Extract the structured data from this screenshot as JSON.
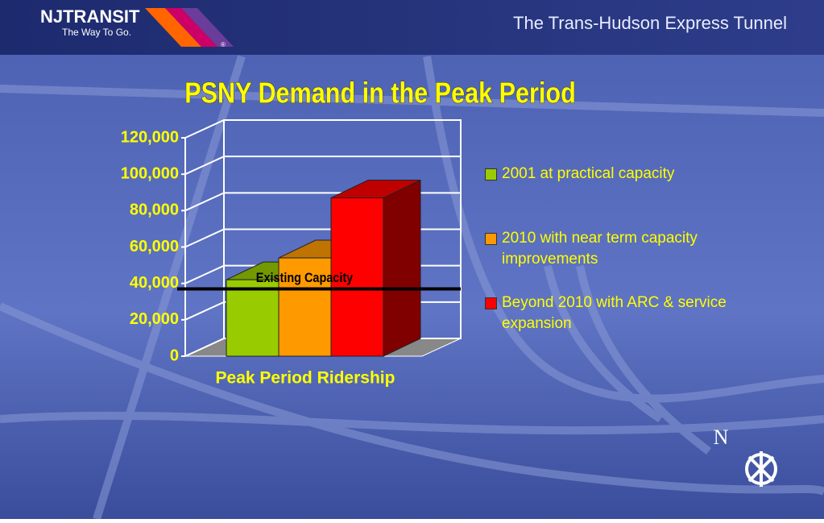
{
  "header": {
    "logo": "NJTRANSIT",
    "tagline": "The Way To Go.",
    "registered": "®",
    "banner": "The Trans-Hudson Express Tunnel"
  },
  "compass": "N",
  "chart_data": {
    "type": "bar3d",
    "title": "PSNY Demand in the Peak Period",
    "categories": [
      "Peak Period Ridership"
    ],
    "series": [
      {
        "name": "2001 at practical capacity",
        "color": "#99cc00",
        "values": [
          42000
        ]
      },
      {
        "name": "2010 with near term capacity improvements",
        "color": "#ff9900",
        "values": [
          54000
        ]
      },
      {
        "name": "Beyond 2010 with ARC & service expansion",
        "color": "#ff0000",
        "values": [
          87000
        ]
      }
    ],
    "ylim": [
      0,
      120000
    ],
    "yticks": [
      0,
      {
        "value": 20000,
        "label": "20,000"
      },
      {
        "value": 40000,
        "label": "40,000"
      },
      {
        "value": 60000,
        "label": "60,000"
      },
      {
        "value": 80000,
        "label": "80,000"
      },
      {
        "value": 100000,
        "label": "100,000"
      },
      {
        "value": 120000,
        "label": "120,000"
      }
    ],
    "grid": true,
    "annotations": [
      {
        "text": "Existing Capacity",
        "value": 37000
      }
    ],
    "legend": "right"
  }
}
